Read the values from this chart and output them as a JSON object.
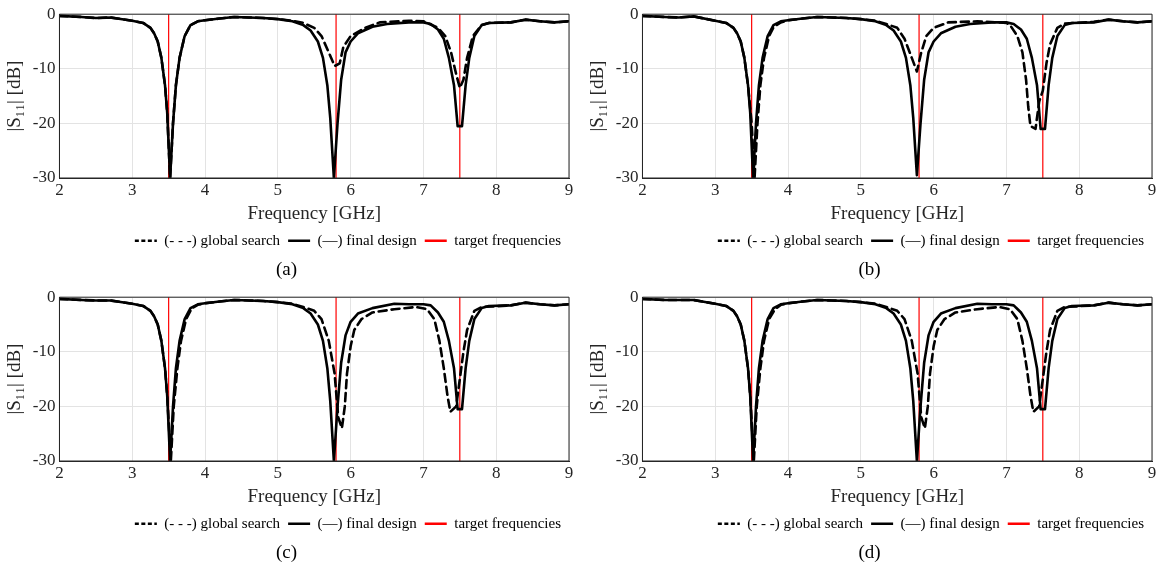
{
  "chart_data": [
    {
      "type": "line",
      "title": "(a)",
      "xlabel": "Frequency [GHz]",
      "ylabel": "|S₁₁| [dB]",
      "xlim": [
        2,
        9
      ],
      "xticks": [
        2,
        3,
        4,
        5,
        6,
        7,
        8,
        9
      ],
      "ylim": [
        -30,
        0
      ],
      "yticks": [
        -30,
        -20,
        -10,
        0
      ],
      "grid": true,
      "legend": "bottom right",
      "marker": "none",
      "series": [
        {
          "name": "(- - -) global search",
          "color": "#000000",
          "line_style": "dashed",
          "x": [
            2.0,
            2.3,
            2.5,
            2.7,
            3.0,
            3.15,
            3.25,
            3.3,
            3.35,
            3.4,
            3.45,
            3.48,
            3.52,
            3.56,
            3.6,
            3.65,
            3.72,
            3.8,
            3.9,
            4.0,
            4.2,
            4.4,
            4.6,
            4.8,
            5.0,
            5.2,
            5.35,
            5.5,
            5.6,
            5.7,
            5.78,
            5.85,
            5.9,
            6.0,
            6.2,
            6.4,
            6.8,
            7.0,
            7.2,
            7.3,
            7.38,
            7.45,
            7.5,
            7.55,
            7.6,
            7.68,
            7.8,
            7.9,
            8.2,
            8.4,
            8.6,
            8.8,
            9.0
          ],
          "values": [
            -0.3,
            -0.5,
            -0.7,
            -0.6,
            -1.2,
            -1.6,
            -2.5,
            -3.5,
            -5,
            -8,
            -13,
            -18,
            -30,
            -20,
            -13,
            -8,
            -4,
            -2,
            -1.3,
            -1.1,
            -0.8,
            -0.5,
            -0.6,
            -0.7,
            -0.9,
            -1.2,
            -1.6,
            -2.5,
            -4,
            -7,
            -9.5,
            -9,
            -6,
            -4,
            -2.5,
            -1.5,
            -1.2,
            -1.3,
            -2.5,
            -4,
            -7,
            -11,
            -13.5,
            -12,
            -8,
            -4,
            -2,
            -1.6,
            -1.5,
            -1,
            -1.3,
            -1.5,
            -1.3
          ]
        },
        {
          "name": "(—) final design",
          "color": "#000000",
          "line_style": "solid",
          "x": [
            2.0,
            2.3,
            2.5,
            2.7,
            3.0,
            3.15,
            3.25,
            3.3,
            3.35,
            3.4,
            3.45,
            3.48,
            3.52,
            3.56,
            3.6,
            3.65,
            3.72,
            3.8,
            3.9,
            4.0,
            4.2,
            4.4,
            4.6,
            4.8,
            5.0,
            5.2,
            5.35,
            5.45,
            5.55,
            5.62,
            5.68,
            5.72,
            5.77,
            5.82,
            5.87,
            5.93,
            6.0,
            6.1,
            6.3,
            6.5,
            6.8,
            7.0,
            7.1,
            7.2,
            7.28,
            7.35,
            7.42,
            7.47,
            7.53,
            7.58,
            7.63,
            7.7,
            7.8,
            7.9,
            8.2,
            8.4,
            8.6,
            8.8,
            9.0
          ],
          "values": [
            -0.3,
            -0.5,
            -0.7,
            -0.6,
            -1.2,
            -1.6,
            -2.5,
            -3.5,
            -5,
            -8,
            -13,
            -18,
            -30,
            -20,
            -13,
            -8,
            -4,
            -2,
            -1.3,
            -1.1,
            -0.8,
            -0.5,
            -0.6,
            -0.7,
            -0.9,
            -1.3,
            -2,
            -3,
            -5,
            -8,
            -13,
            -19,
            -30,
            -20,
            -12,
            -7,
            -5,
            -3.5,
            -2.3,
            -1.8,
            -1.5,
            -1.5,
            -1.8,
            -2.8,
            -4.5,
            -8,
            -13,
            -20.5,
            -20.5,
            -13,
            -8,
            -4,
            -2,
            -1.6,
            -1.5,
            -1,
            -1.3,
            -1.5,
            -1.3
          ]
        }
      ],
      "ref_lines": [
        {
          "axis": "x",
          "value": 3.5,
          "label": "target frequencies",
          "color": "#ff0000"
        },
        {
          "axis": "x",
          "value": 5.8,
          "color": "#ff0000"
        },
        {
          "axis": "x",
          "value": 7.5,
          "color": "#ff0000"
        }
      ]
    },
    {
      "type": "line",
      "title": "(b)",
      "xlabel": "Frequency [GHz]",
      "ylabel": "|S₁₁| [dB]",
      "xlim": [
        2,
        9
      ],
      "xticks": [
        2,
        3,
        4,
        5,
        6,
        7,
        8,
        9
      ],
      "ylim": [
        -30,
        0
      ],
      "yticks": [
        -30,
        -20,
        -10,
        0
      ],
      "grid": true,
      "legend": "bottom right",
      "marker": "none",
      "series": [
        {
          "name": "(- - -) global search",
          "color": "#000000",
          "line_style": "dashed",
          "x": [
            2.0,
            2.3,
            2.5,
            2.7,
            3.0,
            3.15,
            3.25,
            3.3,
            3.35,
            3.4,
            3.45,
            3.5,
            3.54,
            3.58,
            3.62,
            3.67,
            3.74,
            3.8,
            3.9,
            4.0,
            4.2,
            4.4,
            4.6,
            4.8,
            5.0,
            5.2,
            5.35,
            5.5,
            5.6,
            5.7,
            5.77,
            5.83,
            5.9,
            6.0,
            6.2,
            6.6,
            7.0,
            7.05,
            7.15,
            7.22,
            7.27,
            7.3,
            7.33,
            7.4,
            7.45,
            7.5,
            7.55,
            7.6,
            7.7,
            7.8,
            8.2,
            8.4,
            8.6,
            8.8,
            9.0
          ],
          "values": [
            -0.3,
            -0.5,
            -0.6,
            -0.4,
            -1.2,
            -1.6,
            -2.5,
            -3.5,
            -5,
            -8,
            -13,
            -20,
            -30,
            -20,
            -13,
            -8,
            -4,
            -2.4,
            -1.5,
            -1.1,
            -0.8,
            -0.5,
            -0.6,
            -0.7,
            -0.9,
            -1.2,
            -1.8,
            -2.5,
            -4.5,
            -8,
            -10.5,
            -7,
            -4,
            -2.5,
            -1.5,
            -1.3,
            -1.6,
            -2,
            -4,
            -7,
            -12,
            -17,
            -20.5,
            -21,
            -16,
            -14,
            -9,
            -5.5,
            -2.5,
            -1.7,
            -1.4,
            -1,
            -1.3,
            -1.5,
            -1.3
          ]
        },
        {
          "name": "(—) final design",
          "color": "#000000",
          "line_style": "solid",
          "x": [
            2.0,
            2.3,
            2.5,
            2.7,
            3.0,
            3.15,
            3.25,
            3.3,
            3.35,
            3.4,
            3.45,
            3.48,
            3.52,
            3.56,
            3.6,
            3.65,
            3.72,
            3.8,
            3.9,
            4.0,
            4.2,
            4.4,
            4.6,
            4.8,
            5.0,
            5.2,
            5.35,
            5.45,
            5.55,
            5.62,
            5.68,
            5.72,
            5.77,
            5.82,
            5.87,
            5.93,
            6.0,
            6.1,
            6.3,
            6.5,
            6.8,
            7.0,
            7.1,
            7.2,
            7.28,
            7.35,
            7.42,
            7.47,
            7.53,
            7.58,
            7.63,
            7.7,
            7.8,
            7.9,
            8.2,
            8.4,
            8.6,
            8.8,
            9.0
          ],
          "values": [
            -0.3,
            -0.5,
            -0.6,
            -0.4,
            -1.2,
            -1.6,
            -2.5,
            -3.5,
            -5,
            -8,
            -13,
            -18,
            -30,
            -20,
            -13,
            -8,
            -4,
            -2,
            -1.3,
            -1.1,
            -0.8,
            -0.5,
            -0.6,
            -0.7,
            -0.9,
            -1.3,
            -2,
            -3,
            -5,
            -8,
            -13,
            -19,
            -29.5,
            -20,
            -12,
            -7,
            -5,
            -3.5,
            -2.3,
            -1.8,
            -1.5,
            -1.5,
            -1.8,
            -2.8,
            -4.5,
            -8,
            -13,
            -21,
            -21,
            -13,
            -8,
            -4,
            -2,
            -1.6,
            -1.5,
            -1,
            -1.3,
            -1.5,
            -1.3
          ]
        }
      ],
      "ref_lines": [
        {
          "axis": "x",
          "value": 3.5,
          "label": "target frequencies",
          "color": "#ff0000"
        },
        {
          "axis": "x",
          "value": 5.8,
          "color": "#ff0000"
        },
        {
          "axis": "x",
          "value": 7.5,
          "color": "#ff0000"
        }
      ]
    },
    {
      "type": "line",
      "title": "(c)",
      "xlabel": "Frequency [GHz]",
      "ylabel": "|S₁₁| [dB]",
      "xlim": [
        2,
        9
      ],
      "xticks": [
        2,
        3,
        4,
        5,
        6,
        7,
        8,
        9
      ],
      "ylim": [
        -30,
        0
      ],
      "yticks": [
        -30,
        -20,
        -10,
        0
      ],
      "grid": true,
      "legend": "bottom right",
      "marker": "none",
      "series": [
        {
          "name": "(- - -) global search",
          "color": "#000000",
          "line_style": "dashed",
          "x": [
            2.0,
            2.3,
            2.5,
            2.7,
            3.0,
            3.15,
            3.25,
            3.3,
            3.35,
            3.4,
            3.45,
            3.48,
            3.53,
            3.57,
            3.62,
            3.67,
            3.74,
            3.82,
            3.9,
            4.0,
            4.2,
            4.4,
            4.6,
            4.8,
            5.0,
            5.2,
            5.35,
            5.5,
            5.6,
            5.7,
            5.78,
            5.83,
            5.88,
            5.92,
            5.95,
            6.0,
            6.05,
            6.15,
            6.3,
            6.6,
            6.9,
            7.05,
            7.15,
            7.22,
            7.28,
            7.33,
            7.37,
            7.45,
            7.5,
            7.55,
            7.6,
            7.7,
            7.8,
            8.2,
            8.4,
            8.6,
            8.8,
            9.0
          ],
          "values": [
            -0.3,
            -0.5,
            -0.6,
            -0.6,
            -1.2,
            -1.6,
            -2.5,
            -3.5,
            -5,
            -8,
            -13,
            -18,
            -30,
            -20,
            -13,
            -8,
            -4,
            -2,
            -1.4,
            -1.1,
            -0.8,
            -0.5,
            -0.6,
            -0.7,
            -0.9,
            -1.2,
            -1.8,
            -2.5,
            -4,
            -8,
            -14,
            -22,
            -24,
            -20,
            -14,
            -9,
            -6,
            -4,
            -2.8,
            -2.2,
            -1.8,
            -2.2,
            -4,
            -8,
            -13,
            -18,
            -21,
            -20,
            -15,
            -10,
            -6,
            -2.5,
            -1.8,
            -1.5,
            -1,
            -1.3,
            -1.5,
            -1.3
          ]
        },
        {
          "name": "(—) final design",
          "color": "#000000",
          "line_style": "solid",
          "x": [
            2.0,
            2.3,
            2.5,
            2.7,
            3.0,
            3.15,
            3.25,
            3.3,
            3.35,
            3.4,
            3.45,
            3.48,
            3.52,
            3.56,
            3.6,
            3.65,
            3.72,
            3.8,
            3.9,
            4.0,
            4.2,
            4.4,
            4.6,
            4.8,
            5.0,
            5.2,
            5.35,
            5.45,
            5.55,
            5.62,
            5.68,
            5.72,
            5.77,
            5.82,
            5.87,
            5.93,
            6.0,
            6.1,
            6.3,
            6.6,
            6.8,
            7.0,
            7.1,
            7.2,
            7.28,
            7.35,
            7.42,
            7.47,
            7.53,
            7.58,
            7.63,
            7.7,
            7.8,
            7.9,
            8.2,
            8.4,
            8.6,
            8.8,
            9.0
          ],
          "values": [
            -0.3,
            -0.5,
            -0.6,
            -0.6,
            -1.2,
            -1.6,
            -2.5,
            -3.5,
            -5,
            -8,
            -13,
            -18,
            -30,
            -20,
            -13,
            -8,
            -4,
            -2,
            -1.3,
            -1.1,
            -0.8,
            -0.5,
            -0.6,
            -0.7,
            -0.9,
            -1.3,
            -2,
            -3,
            -5,
            -8,
            -13,
            -19,
            -30,
            -20,
            -12,
            -7,
            -4.5,
            -3,
            -2,
            -1.2,
            -1.3,
            -1.3,
            -1.5,
            -2.8,
            -4.5,
            -8,
            -13,
            -20.5,
            -20.5,
            -13,
            -8,
            -4,
            -2,
            -1.6,
            -1.5,
            -1,
            -1.3,
            -1.5,
            -1.3
          ]
        }
      ],
      "ref_lines": [
        {
          "axis": "x",
          "value": 3.5,
          "label": "target frequencies",
          "color": "#ff0000"
        },
        {
          "axis": "x",
          "value": 5.8,
          "color": "#ff0000"
        },
        {
          "axis": "x",
          "value": 7.5,
          "color": "#ff0000"
        }
      ]
    },
    {
      "type": "line",
      "title": "(d)",
      "xlabel": "Frequency [GHz]",
      "ylabel": "|S₁₁| [dB]",
      "xlim": [
        2,
        9
      ],
      "xticks": [
        2,
        3,
        4,
        5,
        6,
        7,
        8,
        9
      ],
      "ylim": [
        -30,
        0
      ],
      "yticks": [
        -30,
        -20,
        -10,
        0
      ],
      "grid": true,
      "legend": "bottom right",
      "marker": "none",
      "series": [
        {
          "name": "(- - -) global search",
          "color": "#000000",
          "line_style": "dashed",
          "x": [
            2.0,
            2.3,
            2.5,
            2.7,
            3.0,
            3.15,
            3.25,
            3.3,
            3.35,
            3.4,
            3.45,
            3.48,
            3.53,
            3.57,
            3.62,
            3.67,
            3.74,
            3.82,
            3.9,
            4.0,
            4.2,
            4.4,
            4.6,
            4.8,
            5.0,
            5.2,
            5.35,
            5.5,
            5.6,
            5.7,
            5.78,
            5.83,
            5.88,
            5.92,
            5.95,
            6.0,
            6.05,
            6.15,
            6.3,
            6.6,
            6.9,
            7.05,
            7.15,
            7.22,
            7.28,
            7.33,
            7.37,
            7.45,
            7.5,
            7.55,
            7.6,
            7.7,
            7.8,
            8.2,
            8.4,
            8.6,
            8.8,
            9.0
          ],
          "values": [
            -0.3,
            -0.5,
            -0.5,
            -0.5,
            -1.2,
            -1.6,
            -2.5,
            -3.5,
            -5,
            -8,
            -13,
            -18,
            -30,
            -20,
            -13,
            -8,
            -4,
            -2.2,
            -1.4,
            -1.1,
            -0.8,
            -0.5,
            -0.6,
            -0.7,
            -0.9,
            -1.2,
            -1.8,
            -2.5,
            -4,
            -8,
            -14,
            -22,
            -24,
            -20,
            -14,
            -9,
            -6,
            -4,
            -2.8,
            -2.2,
            -1.8,
            -2.2,
            -4,
            -8,
            -13,
            -18,
            -21,
            -20,
            -15,
            -10,
            -6,
            -2.5,
            -1.8,
            -1.5,
            -1,
            -1.3,
            -1.5,
            -1.3
          ]
        },
        {
          "name": "(—) final design",
          "color": "#000000",
          "line_style": "solid",
          "x": [
            2.0,
            2.3,
            2.5,
            2.7,
            3.0,
            3.15,
            3.25,
            3.3,
            3.35,
            3.4,
            3.45,
            3.48,
            3.52,
            3.56,
            3.6,
            3.65,
            3.72,
            3.8,
            3.9,
            4.0,
            4.2,
            4.4,
            4.6,
            4.8,
            5.0,
            5.2,
            5.35,
            5.45,
            5.55,
            5.62,
            5.68,
            5.72,
            5.77,
            5.82,
            5.87,
            5.93,
            6.0,
            6.1,
            6.3,
            6.6,
            6.8,
            7.0,
            7.1,
            7.2,
            7.28,
            7.35,
            7.42,
            7.47,
            7.53,
            7.58,
            7.63,
            7.7,
            7.8,
            7.9,
            8.2,
            8.4,
            8.6,
            8.8,
            9.0
          ],
          "values": [
            -0.3,
            -0.5,
            -0.5,
            -0.5,
            -1.2,
            -1.6,
            -2.5,
            -3.5,
            -5,
            -8,
            -13,
            -18,
            -30,
            -20,
            -13,
            -8,
            -4,
            -2,
            -1.3,
            -1.1,
            -0.8,
            -0.5,
            -0.6,
            -0.7,
            -0.9,
            -1.3,
            -2,
            -3,
            -5,
            -8,
            -13,
            -19,
            -30,
            -20,
            -12,
            -7,
            -4.5,
            -3,
            -2,
            -1.2,
            -1.3,
            -1.3,
            -1.5,
            -2.8,
            -4.5,
            -8,
            -13,
            -20.5,
            -20.5,
            -13,
            -8,
            -4,
            -2,
            -1.6,
            -1.5,
            -1,
            -1.3,
            -1.5,
            -1.3
          ]
        }
      ],
      "ref_lines": [
        {
          "axis": "x",
          "value": 3.5,
          "label": "target frequencies",
          "color": "#ff0000"
        },
        {
          "axis": "x",
          "value": 5.8,
          "color": "#ff0000"
        },
        {
          "axis": "x",
          "value": 7.5,
          "color": "#ff0000"
        }
      ]
    }
  ]
}
